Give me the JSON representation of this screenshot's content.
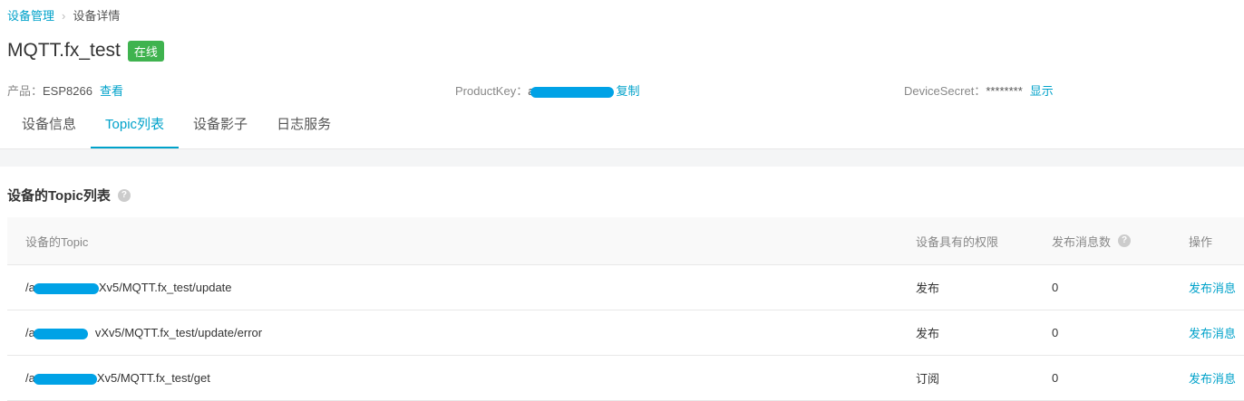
{
  "breadcrumb": {
    "parent": "设备管理",
    "current": "设备详情"
  },
  "device": {
    "name": "MQTT.fx_test",
    "status": "在线",
    "status_color": "#3fb34f"
  },
  "meta": {
    "product_label": "产品：",
    "product_value": "ESP8266",
    "product_link": "查看",
    "productkey_label": "ProductKey：",
    "productkey_prefix": "a",
    "productkey_link": "复制",
    "secret_label": "DeviceSecret：",
    "secret_value": "********",
    "secret_link": "显示"
  },
  "tabs": [
    {
      "label": "设备信息"
    },
    {
      "label": "Topic列表"
    },
    {
      "label": "设备影子"
    },
    {
      "label": "日志服务"
    }
  ],
  "section_title": "设备的Topic列表",
  "table": {
    "headers": [
      "设备的Topic",
      "设备具有的权限",
      "发布消息数",
      "操作"
    ],
    "rows": [
      {
        "topic_prefix": "/a",
        "topic_suffix": "Xv5/MQTT.fx_test/update",
        "permission": "发布",
        "count": "0",
        "action": "发布消息"
      },
      {
        "topic_prefix": "/a",
        "topic_suffix": "vXv5/MQTT.fx_test/update/error",
        "permission": "发布",
        "count": "0",
        "action": "发布消息"
      },
      {
        "topic_prefix": "/a",
        "topic_suffix": "Xv5/MQTT.fx_test/get",
        "permission": "订阅",
        "count": "0",
        "action": "发布消息"
      }
    ]
  },
  "accent_color": "#00a2ca"
}
